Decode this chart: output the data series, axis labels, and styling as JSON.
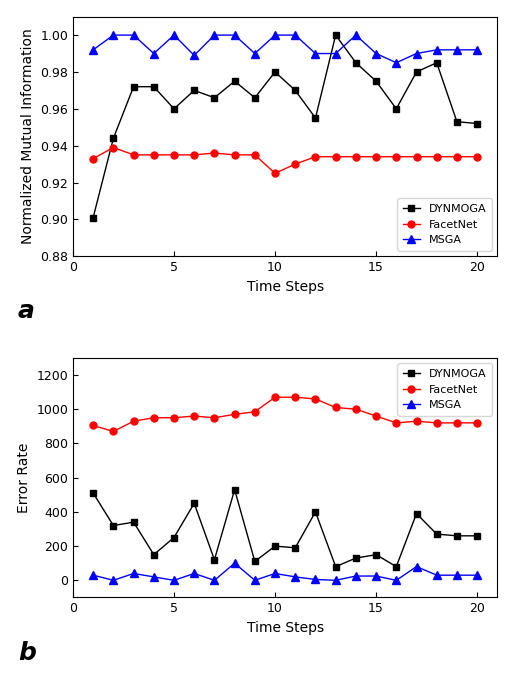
{
  "dynmoga_nmi_x": [
    1,
    2,
    3,
    4,
    5,
    6,
    7,
    8,
    9,
    10,
    11,
    12,
    13,
    14,
    15,
    16,
    17,
    18,
    19,
    20
  ],
  "dynmoga_nmi_y": [
    0.901,
    0.944,
    0.972,
    0.972,
    0.96,
    0.97,
    0.966,
    0.975,
    0.966,
    0.98,
    0.97,
    0.955,
    1.0,
    0.985,
    0.975,
    0.96,
    0.98,
    0.985,
    0.953,
    0.952
  ],
  "facetnet_nmi_x": [
    1,
    2,
    3,
    4,
    5,
    6,
    7,
    8,
    9,
    10,
    11,
    12,
    13,
    14,
    15,
    16,
    17,
    18,
    19,
    20
  ],
  "facetnet_nmi_y": [
    0.933,
    0.939,
    0.935,
    0.935,
    0.935,
    0.935,
    0.936,
    0.935,
    0.935,
    0.925,
    0.93,
    0.934,
    0.934,
    0.934,
    0.934,
    0.934,
    0.934,
    0.934,
    0.934,
    0.934
  ],
  "msga_nmi_x": [
    1,
    2,
    3,
    4,
    5,
    6,
    7,
    8,
    9,
    10,
    11,
    12,
    13,
    14,
    15,
    16,
    17,
    18,
    19,
    20
  ],
  "msga_nmi_y": [
    0.992,
    1.0,
    1.0,
    0.99,
    1.0,
    0.989,
    1.0,
    1.0,
    0.99,
    1.0,
    1.0,
    0.99,
    0.99,
    1.0,
    0.99,
    0.985,
    0.99,
    0.992,
    0.992,
    0.992
  ],
  "dynmoga_err_x": [
    1,
    2,
    3,
    4,
    5,
    6,
    7,
    8,
    9,
    10,
    11,
    12,
    13,
    14,
    15,
    16,
    17,
    18,
    19,
    20
  ],
  "dynmoga_err_y": [
    510,
    320,
    340,
    150,
    250,
    450,
    120,
    530,
    110,
    200,
    190,
    400,
    80,
    130,
    150,
    80,
    390,
    270,
    260,
    260
  ],
  "facetnet_err_x": [
    1,
    2,
    3,
    4,
    5,
    6,
    7,
    8,
    9,
    10,
    11,
    12,
    13,
    14,
    15,
    16,
    17,
    18,
    19,
    20
  ],
  "facetnet_err_y": [
    905,
    870,
    930,
    950,
    950,
    960,
    950,
    970,
    985,
    1070,
    1070,
    1060,
    1010,
    1000,
    960,
    920,
    930,
    920,
    920,
    920
  ],
  "msga_err_x": [
    1,
    2,
    3,
    4,
    5,
    6,
    7,
    8,
    9,
    10,
    11,
    12,
    13,
    14,
    15,
    16,
    17,
    18,
    19,
    20
  ],
  "msga_err_y": [
    30,
    0,
    40,
    20,
    0,
    40,
    0,
    100,
    0,
    40,
    20,
    5,
    0,
    25,
    25,
    0,
    80,
    30,
    30,
    30
  ],
  "nmi_ylim": [
    0.88,
    1.01
  ],
  "nmi_yticks": [
    0.88,
    0.9,
    0.92,
    0.94,
    0.96,
    0.98,
    1.0
  ],
  "err_ylim": [
    -100,
    1300
  ],
  "err_yticks": [
    0,
    200,
    400,
    600,
    800,
    1000,
    1200
  ],
  "xlim": [
    0,
    21
  ],
  "xticks": [
    0,
    5,
    10,
    15,
    20
  ],
  "color_dynmoga": "#000000",
  "color_facetnet": "#ff0000",
  "color_msga": "#0000ff",
  "label_a": "a",
  "label_b": "b",
  "xlabel": "Time Steps",
  "ylabel_a": "Normalized Mutual Information",
  "ylabel_b": "Error Rate",
  "legend_labels": [
    "DYNMOGA",
    "FacetNet",
    "MSGA"
  ],
  "marker_size": 5,
  "line_width": 1.0,
  "font_size_label": 10,
  "font_size_tick": 9,
  "font_size_legend": 8
}
